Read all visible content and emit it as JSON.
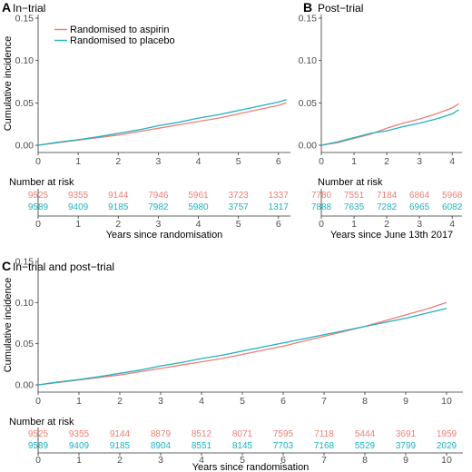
{
  "colors": {
    "aspirin": "#F07E75",
    "placebo": "#1DB3C2"
  },
  "legend": [
    "Randomised to aspirin",
    "Randomised to placebo"
  ],
  "risk_table_title": "Number at risk",
  "chart_data": [
    {
      "panel": "A",
      "type": "line",
      "title": "In−trial",
      "ylabel": "Cumulative incidence",
      "xlabel": "Years since randomisation",
      "xlim": [
        0,
        6.3
      ],
      "ylim": [
        0,
        0.15
      ],
      "xticks": [
        "0",
        "1",
        "2",
        "3",
        "4",
        "5",
        "6"
      ],
      "yticks": [
        "0.00",
        "0.05",
        "0.10",
        "0.15"
      ],
      "grid": false,
      "legend_position": "top-left",
      "series": [
        {
          "name": "Randomised to aspirin",
          "color_key": "aspirin",
          "x": [
            0,
            0.5,
            1,
            1.5,
            2,
            2.5,
            3,
            3.5,
            4,
            4.5,
            5,
            5.5,
            6,
            6.2
          ],
          "y": [
            0,
            0.003,
            0.006,
            0.009,
            0.012,
            0.016,
            0.02,
            0.024,
            0.028,
            0.032,
            0.037,
            0.042,
            0.047,
            0.05
          ]
        },
        {
          "name": "Randomised to placebo",
          "color_key": "placebo",
          "x": [
            0,
            0.5,
            1,
            1.5,
            2,
            2.5,
            3,
            3.5,
            4,
            4.5,
            5,
            5.5,
            6,
            6.2
          ],
          "y": [
            0,
            0.0035,
            0.0065,
            0.01,
            0.014,
            0.018,
            0.023,
            0.027,
            0.032,
            0.036,
            0.041,
            0.046,
            0.051,
            0.054
          ]
        }
      ],
      "risk_table": {
        "times": [
          "0",
          "1",
          "2",
          "3",
          "4",
          "5",
          "6"
        ],
        "aspirin": [
          "9525",
          "9355",
          "9144",
          "7946",
          "5961",
          "3723",
          "1337"
        ],
        "placebo": [
          "9589",
          "9409",
          "9185",
          "7982",
          "5980",
          "3757",
          "1317"
        ]
      }
    },
    {
      "panel": "B",
      "type": "line",
      "title": "Post−trial",
      "ylabel": "",
      "xlabel": "Years since June 13th 2017",
      "xlim": [
        0,
        4.3
      ],
      "ylim": [
        0,
        0.15
      ],
      "xticks": [
        "0",
        "1",
        "2",
        "3",
        "4"
      ],
      "yticks": [
        "0.00",
        "0.05",
        "0.10",
        "0.15"
      ],
      "grid": false,
      "series": [
        {
          "name": "Randomised to aspirin",
          "color_key": "aspirin",
          "x": [
            0,
            0.5,
            1,
            1.5,
            2,
            2.5,
            3,
            3.5,
            4,
            4.2
          ],
          "y": [
            0,
            0.003,
            0.008,
            0.013,
            0.02,
            0.026,
            0.031,
            0.037,
            0.044,
            0.049
          ]
        },
        {
          "name": "Randomised to placebo",
          "color_key": "placebo",
          "x": [
            0,
            0.5,
            1,
            1.5,
            2,
            2.5,
            3,
            3.5,
            4,
            4.2
          ],
          "y": [
            0,
            0.004,
            0.009,
            0.014,
            0.017,
            0.022,
            0.026,
            0.031,
            0.037,
            0.042
          ]
        }
      ],
      "risk_table": {
        "times": [
          "0",
          "1",
          "2",
          "3",
          "4"
        ],
        "aspirin": [
          "7780",
          "7551",
          "7184",
          "6864",
          "5968"
        ],
        "placebo": [
          "7888",
          "7635",
          "7282",
          "6965",
          "6082"
        ]
      }
    },
    {
      "panel": "C",
      "type": "line",
      "title": "In−trial and post−trial",
      "ylabel": "Cumulative incidence",
      "xlabel": "Years since randomisation",
      "xlim": [
        0,
        10.4
      ],
      "ylim": [
        0,
        0.15
      ],
      "xticks": [
        "0",
        "1",
        "2",
        "3",
        "4",
        "5",
        "6",
        "7",
        "8",
        "9",
        "10"
      ],
      "yticks": [
        "0.00",
        "0.05",
        "0.10",
        "0.15"
      ],
      "grid": false,
      "series": [
        {
          "name": "Randomised to aspirin",
          "color_key": "aspirin",
          "x": [
            0,
            0.5,
            1,
            1.5,
            2,
            2.5,
            3,
            3.5,
            4,
            4.5,
            5,
            5.5,
            6,
            6.5,
            7,
            7.5,
            8,
            8.5,
            9,
            9.5,
            10
          ],
          "y": [
            0,
            0.003,
            0.006,
            0.009,
            0.012,
            0.016,
            0.02,
            0.024,
            0.028,
            0.032,
            0.037,
            0.042,
            0.047,
            0.053,
            0.059,
            0.065,
            0.071,
            0.078,
            0.085,
            0.092,
            0.1
          ]
        },
        {
          "name": "Randomised to placebo",
          "color_key": "placebo",
          "x": [
            0,
            0.5,
            1,
            1.5,
            2,
            2.5,
            3,
            3.5,
            4,
            4.5,
            5,
            5.5,
            6,
            6.5,
            7,
            7.5,
            8,
            8.5,
            9,
            9.5,
            10
          ],
          "y": [
            0,
            0.0035,
            0.0065,
            0.01,
            0.014,
            0.018,
            0.023,
            0.027,
            0.032,
            0.036,
            0.041,
            0.046,
            0.051,
            0.056,
            0.061,
            0.066,
            0.071,
            0.076,
            0.081,
            0.087,
            0.093
          ]
        }
      ],
      "risk_table": {
        "times": [
          "0",
          "1",
          "2",
          "3",
          "4",
          "5",
          "6",
          "7",
          "8",
          "9",
          "10"
        ],
        "aspirin": [
          "9525",
          "9355",
          "9144",
          "8879",
          "8512",
          "8071",
          "7595",
          "7118",
          "5444",
          "3691",
          "1959"
        ],
        "placebo": [
          "9589",
          "9409",
          "9185",
          "8904",
          "8551",
          "8145",
          "7703",
          "7168",
          "5529",
          "3799",
          "2029"
        ]
      }
    }
  ]
}
